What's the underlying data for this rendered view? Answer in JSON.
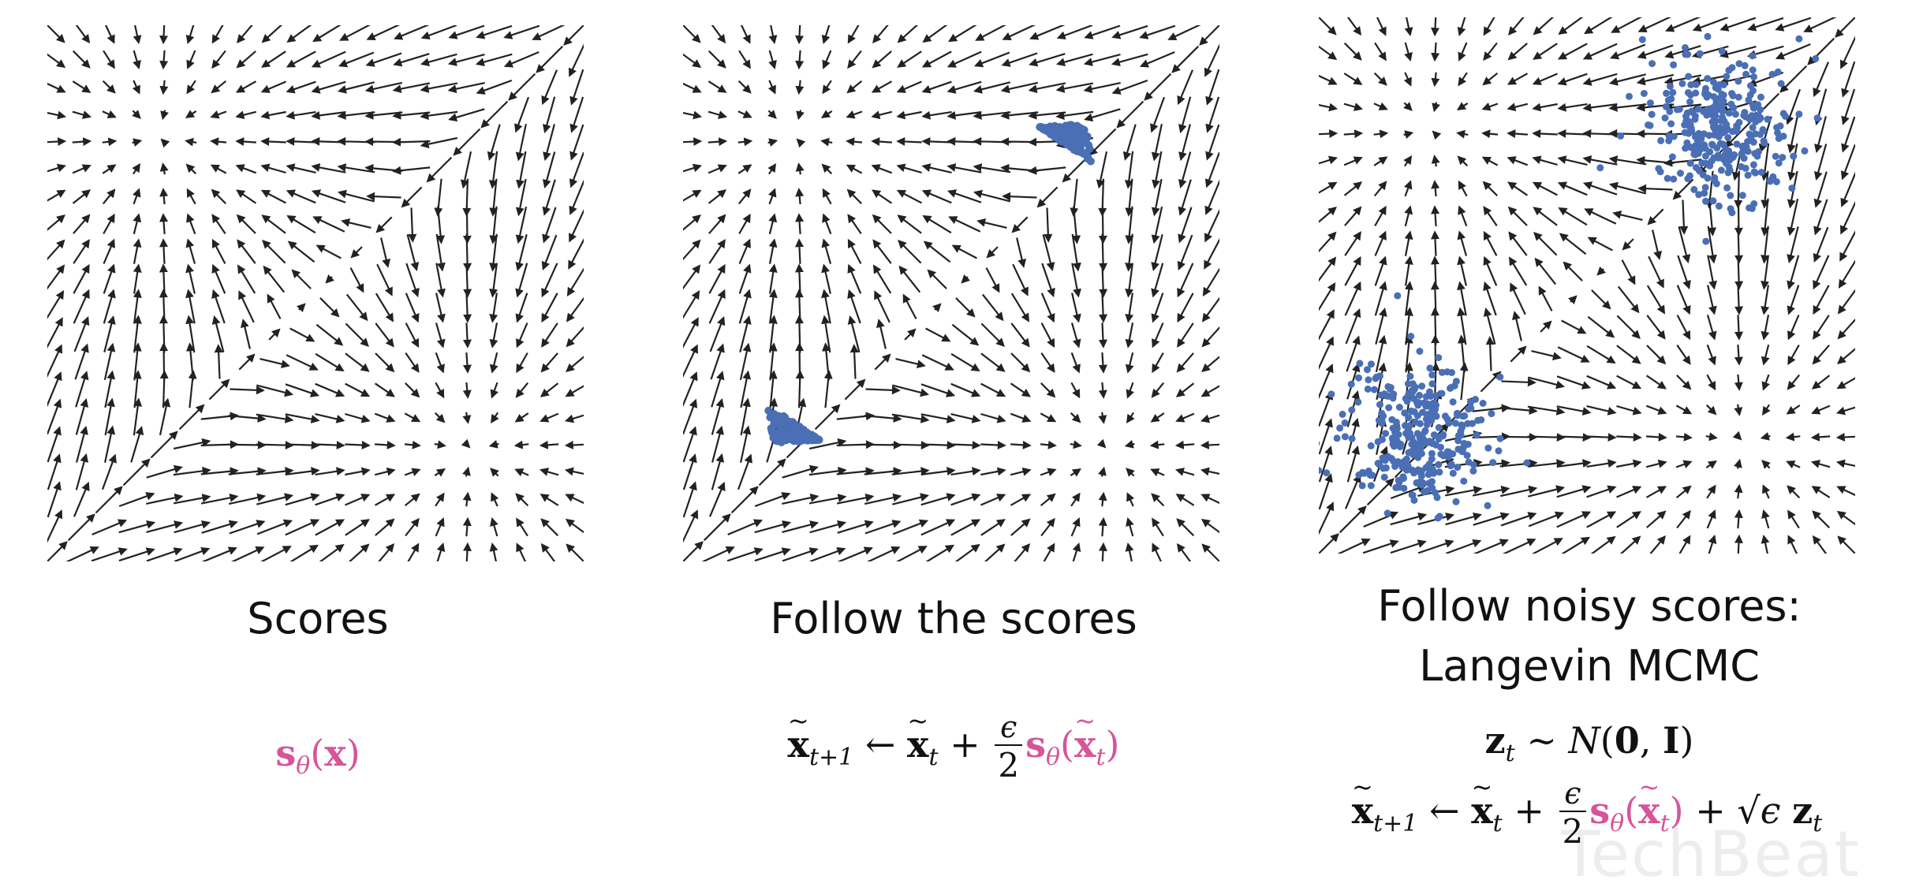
{
  "panels": [
    {
      "caption_lines": [
        "Scores"
      ],
      "formula": "s_θ(x)"
    },
    {
      "caption_lines": [
        "Follow the scores"
      ],
      "formula": "x̃_{t+1} ← x̃_t + (ε/2) s_θ(x̃_t)"
    },
    {
      "caption_lines": [
        "Follow noisy scores:",
        "Langevin MCMC"
      ],
      "formula_line1": "z_t ∼ N(0, I)",
      "formula_line2": "x̃_{t+1} ← x̃_t + (ε/2) s_θ(x̃_t) + √ε z_t"
    }
  ],
  "watermark": "TechBeat",
  "colors": {
    "arrow": "#222222",
    "samples": "#4a6fb5",
    "score_term": "#d6559a"
  },
  "field": {
    "grid": 20,
    "modes": [
      [
        0.2,
        0.2
      ],
      [
        0.8,
        0.8
      ]
    ]
  }
}
